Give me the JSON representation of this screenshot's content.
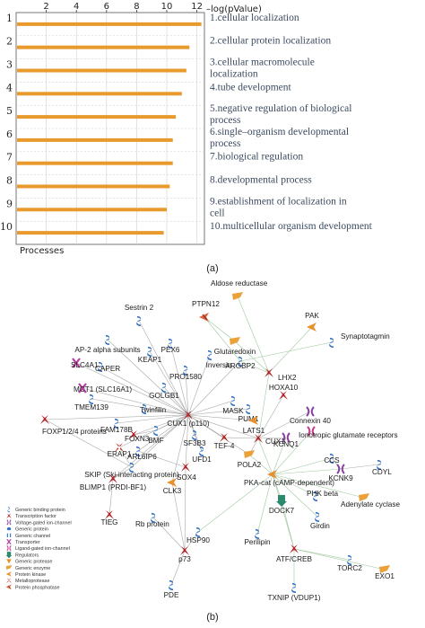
{
  "panel_a_label": "(a)",
  "panel_b_label": "(b)",
  "chart_data": {
    "type": "bar",
    "orientation": "horizontal",
    "xlabel": "–log(pValue)",
    "ylabel": "Processes",
    "xlim": [
      0,
      12.5
    ],
    "xticks": [
      "2",
      "4",
      "6",
      "8",
      "10",
      "12"
    ],
    "bar_color": "#e89a2c",
    "grid": true,
    "categories": [
      "1",
      "2",
      "3",
      "4",
      "5",
      "6",
      "7",
      "8",
      "9",
      "10"
    ],
    "values": [
      12.3,
      11.5,
      11.3,
      11.0,
      10.6,
      10.4,
      10.4,
      10.2,
      10.0,
      9.8
    ],
    "labels": [
      [
        "1.cellular localization"
      ],
      [
        "2.cellular protein localization"
      ],
      [
        "3.cellular macromolecule",
        "localization"
      ],
      [
        "4.tube development"
      ],
      [
        "5.negative regulation of biological",
        "process"
      ],
      [
        "6.single–organism developmental",
        "process"
      ],
      [
        "7.biological regulation"
      ],
      [
        "8.developmental process"
      ],
      [
        "9.establishment of localization in",
        "cell"
      ],
      [
        "10.multicellular organism development"
      ]
    ]
  },
  "network": {
    "nodes": [
      {
        "label": "Aldose reductase",
        "type": "enzyme"
      },
      {
        "label": "PTPN12",
        "type": "phosphatase"
      },
      {
        "label": "PAK",
        "type": "kinase"
      },
      {
        "label": "Sestrin 2",
        "type": "binding"
      },
      {
        "label": "Glutaredoxin",
        "type": "enzyme"
      },
      {
        "label": "Synaptotagmin",
        "type": "binding"
      },
      {
        "label": "AP-2 alpha subunits",
        "type": "binding"
      },
      {
        "label": "PEX6",
        "type": "binding"
      },
      {
        "label": "KEAP1",
        "type": "binding"
      },
      {
        "label": "Inversin",
        "type": "binding"
      },
      {
        "label": "SLC4A1",
        "type": "transporter"
      },
      {
        "label": "CAPER",
        "type": "binding"
      },
      {
        "label": "ARGBP2",
        "type": "binding"
      },
      {
        "label": "PRO1580",
        "type": "binding"
      },
      {
        "label": "LHX2",
        "type": "tf"
      },
      {
        "label": "MCT1 (SLC16A1)",
        "type": "transporter"
      },
      {
        "label": "GOLGB1",
        "type": "binding"
      },
      {
        "label": "HOXA10",
        "type": "tf"
      },
      {
        "label": "TMEM139",
        "type": "binding"
      },
      {
        "label": "MASK",
        "type": "binding"
      },
      {
        "label": "Twinfilin",
        "type": "binding"
      },
      {
        "label": "PUM1",
        "type": "binding"
      },
      {
        "label": "Connexin 40",
        "type": "channel"
      },
      {
        "label": "CUX1 (p110)",
        "type": "tf"
      },
      {
        "label": "FOXP1/2/4 proteins",
        "type": "tf"
      },
      {
        "label": "FAM178B",
        "type": "binding"
      },
      {
        "label": "LATS1",
        "type": "kinase"
      },
      {
        "label": "CUX1",
        "type": "tf"
      },
      {
        "label": "KCNQ1",
        "type": "channel"
      },
      {
        "label": "BMF",
        "type": "binding"
      },
      {
        "label": "FOXN3",
        "type": "tf"
      },
      {
        "label": "SF3B3",
        "type": "binding"
      },
      {
        "label": "TEF-4",
        "type": "tf"
      },
      {
        "label": "Ionotropic glutamate receptors",
        "type": "ligand-channel"
      },
      {
        "label": "ERAP1",
        "type": "metalloprotease"
      },
      {
        "label": "ARL6IP6",
        "type": "binding"
      },
      {
        "label": "UFD1",
        "type": "binding"
      },
      {
        "label": "POLA2",
        "type": "enzyme"
      },
      {
        "label": "SKIP (Ski-interacting protein)",
        "type": "binding"
      },
      {
        "label": "SOX4",
        "type": "tf"
      },
      {
        "label": "CCS",
        "type": "binding"
      },
      {
        "label": "KCNK9",
        "type": "channel"
      },
      {
        "label": "CDYL",
        "type": "binding"
      },
      {
        "label": "PKA-cat (cAMP-dependent)",
        "type": "kinase"
      },
      {
        "label": "BLIMP1 (PRDI-BF1)",
        "type": "tf"
      },
      {
        "label": "CLK3",
        "type": "kinase"
      },
      {
        "label": "PHK beta",
        "type": "binding"
      },
      {
        "label": "DOCK7",
        "type": "regulator"
      },
      {
        "label": "Adenylate cyclase",
        "type": "enzyme"
      },
      {
        "label": "TIEG",
        "type": "tf"
      },
      {
        "label": "Rb protein",
        "type": "binding"
      },
      {
        "label": "Girdin",
        "type": "binding"
      },
      {
        "label": "HSP90",
        "type": "binding"
      },
      {
        "label": "Perilipin",
        "type": "binding"
      },
      {
        "label": "p73",
        "type": "tf"
      },
      {
        "label": "ATF/CREB",
        "type": "tf"
      },
      {
        "label": "TORC2",
        "type": "binding"
      },
      {
        "label": "EXO1",
        "type": "enzyme"
      },
      {
        "label": "PDE",
        "type": "binding"
      },
      {
        "label": "TXNIP (VDUP1)",
        "type": "binding"
      }
    ],
    "legend": [
      {
        "label": "Generic binding protein",
        "type": "binding"
      },
      {
        "label": "Transcription factor",
        "type": "tf"
      },
      {
        "label": "Voltage-gated ion-channel",
        "type": "channel"
      },
      {
        "label": "Generic protein",
        "type": "generic"
      },
      {
        "label": "Generic channel",
        "type": "generic-channel"
      },
      {
        "label": "Transporter",
        "type": "transporter"
      },
      {
        "label": "Ligand-gated ion-channel",
        "type": "ligand-channel"
      },
      {
        "label": "Regulators",
        "type": "regulator"
      },
      {
        "label": "Generic protease",
        "type": "protease"
      },
      {
        "label": "Generic enzyme",
        "type": "enzyme"
      },
      {
        "label": "Protein kinase",
        "type": "kinase"
      },
      {
        "label": "Metalloprotease",
        "type": "metalloprotease"
      },
      {
        "label": "Protein phosphatase",
        "type": "phosphatase"
      }
    ]
  }
}
